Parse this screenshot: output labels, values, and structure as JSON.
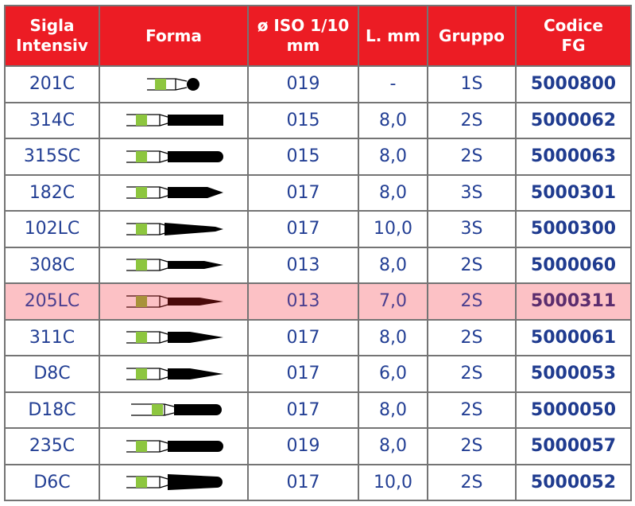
{
  "header": {
    "sigla": "Sigla Intensiv",
    "sigla_l1": "Sigla",
    "sigla_l2": "Intensiv",
    "forma": "Forma",
    "iso_l1": "ø ISO 1/10",
    "iso_l2": "mm",
    "length": "L. mm",
    "gruppo": "Gruppo",
    "codice_l1": "Codice",
    "codice_l2": "FG"
  },
  "colors": {
    "header_bg": "#ec1c24",
    "highlight_bg": "#fcc1c5",
    "text": "#233f94",
    "shank_band": "#8dc63f"
  },
  "rows": [
    {
      "sigla": "201C",
      "shape": "ball-bur-icon",
      "iso": "019",
      "length": "-",
      "gruppo": "1S",
      "codice": "5000800"
    },
    {
      "sigla": "314C",
      "shape": "cylinder-flat-bur-icon",
      "iso": "015",
      "length": "8,0",
      "gruppo": "2S",
      "codice": "5000062"
    },
    {
      "sigla": "315SC",
      "shape": "cylinder-round-bur-icon",
      "iso": "015",
      "length": "8,0",
      "gruppo": "2S",
      "codice": "5000063"
    },
    {
      "sigla": "182C",
      "shape": "taper-pointed-bur-icon",
      "iso": "017",
      "length": "8,0",
      "gruppo": "3S",
      "codice": "5000301"
    },
    {
      "sigla": "102LC",
      "shape": "long-taper-bur-icon",
      "iso": "017",
      "length": "10,0",
      "gruppo": "3S",
      "codice": "5000300"
    },
    {
      "sigla": "308C",
      "shape": "thin-taper-bur-icon",
      "iso": "013",
      "length": "8,0",
      "gruppo": "2S",
      "codice": "5000060"
    },
    {
      "sigla": "205LC",
      "shape": "needle-bur-icon",
      "iso": "013",
      "length": "7,0",
      "gruppo": "2S",
      "codice": "5000311",
      "highlighted": true
    },
    {
      "sigla": "311C",
      "shape": "flame-bur-icon",
      "iso": "017",
      "length": "8,0",
      "gruppo": "2S",
      "codice": "5000061"
    },
    {
      "sigla": "D8C",
      "shape": "flame-bur-icon",
      "iso": "017",
      "length": "6,0",
      "gruppo": "2S",
      "codice": "5000053"
    },
    {
      "sigla": "D18C",
      "shape": "cylinder-round-short-bur-icon",
      "iso": "017",
      "length": "8,0",
      "gruppo": "2S",
      "codice": "5000050"
    },
    {
      "sigla": "235C",
      "shape": "cylinder-round-bur-icon",
      "iso": "019",
      "length": "8,0",
      "gruppo": "2S",
      "codice": "5000057"
    },
    {
      "sigla": "D6C",
      "shape": "conical-round-bur-icon",
      "iso": "017",
      "length": "10,0",
      "gruppo": "2S",
      "codice": "5000052"
    }
  ]
}
